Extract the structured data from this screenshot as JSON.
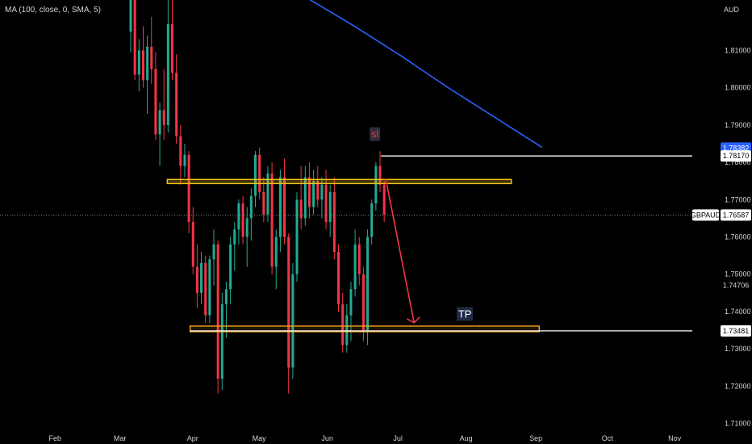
{
  "indicator": {
    "label": "MA (100, close, 0, SMA, 5)"
  },
  "currency": "AUD",
  "chart_data": {
    "type": "candlestick",
    "symbol": "GBPAUD",
    "ylim": [
      1.7045,
      1.8235
    ],
    "y_ticks": [
      "1.81000",
      "1.80000",
      "1.79000",
      "1.78000",
      "1.77000",
      "1.76000",
      "1.75000",
      "1.74000",
      "1.73000",
      "1.72000",
      "1.71000"
    ],
    "x_ticks": [
      "Feb",
      "Mar",
      "Apr",
      "May",
      "Jun",
      "Jul",
      "Aug",
      "Sep",
      "Oct",
      "Nov"
    ],
    "price_labels": {
      "current": "1.76587",
      "top": "1.78382",
      "sl": "1.78170",
      "mid": "1.74706",
      "tp": "1.73481"
    },
    "horizontal_lines": [
      {
        "name": "sl-level",
        "price": 1.7817,
        "color": "#ffffff"
      },
      {
        "name": "tp-level",
        "price": 1.73481,
        "color": "#ffffff"
      },
      {
        "name": "current-price",
        "price": 1.76587,
        "color": "#787b86",
        "style": "dotted"
      }
    ],
    "zones": [
      {
        "name": "resistance-zone",
        "from": 1.7743,
        "to": 1.7754,
        "color": "#f5c518"
      },
      {
        "name": "support-zone",
        "from": 1.7346,
        "to": 1.7361,
        "color": "#f5a623"
      }
    ],
    "annotations": [
      {
        "name": "sl-label",
        "text": "sl",
        "color": "#f23645"
      },
      {
        "name": "tp-label",
        "text": "TP",
        "color": "#ffffff"
      }
    ],
    "colors": {
      "up": "#22ab94",
      "down": "#f23645",
      "ma": "#2962ff",
      "arrow": "#f23645",
      "zone": "#f5c518"
    },
    "ma_series": [
      1.824,
      1.8165,
      1.8085,
      1.8,
      1.792,
      1.784
    ],
    "candles": [
      [
        1.815,
        1.8255,
        1.8095,
        1.824
      ],
      [
        1.824,
        1.8255,
        1.802,
        1.8035
      ],
      [
        1.8035,
        1.813,
        1.799,
        1.81
      ],
      [
        1.81,
        1.8165,
        1.8,
        1.802
      ],
      [
        1.802,
        1.814,
        1.793,
        1.811
      ],
      [
        1.811,
        1.819,
        1.801,
        1.805
      ],
      [
        1.805,
        1.8095,
        1.786,
        1.7875
      ],
      [
        1.7875,
        1.796,
        1.779,
        1.794
      ],
      [
        1.794,
        1.805,
        1.786,
        1.79
      ],
      [
        1.79,
        1.824,
        1.788,
        1.817
      ],
      [
        1.817,
        1.825,
        1.802,
        1.804
      ],
      [
        1.804,
        1.809,
        1.785,
        1.787
      ],
      [
        1.787,
        1.79,
        1.774,
        1.779
      ],
      [
        1.779,
        1.785,
        1.776,
        1.782
      ],
      [
        1.782,
        1.783,
        1.761,
        1.764
      ],
      [
        1.764,
        1.768,
        1.75,
        1.752
      ],
      [
        1.752,
        1.758,
        1.741,
        1.745
      ],
      [
        1.745,
        1.756,
        1.742,
        1.753
      ],
      [
        1.753,
        1.755,
        1.737,
        1.739
      ],
      [
        1.739,
        1.755,
        1.737,
        1.754
      ],
      [
        1.754,
        1.762,
        1.747,
        1.758
      ],
      [
        1.758,
        1.759,
        1.718,
        1.722
      ],
      [
        1.722,
        1.745,
        1.719,
        1.742
      ],
      [
        1.742,
        1.748,
        1.733,
        1.746
      ],
      [
        1.746,
        1.76,
        1.742,
        1.758
      ],
      [
        1.758,
        1.764,
        1.751,
        1.762
      ],
      [
        1.762,
        1.77,
        1.758,
        1.769
      ],
      [
        1.769,
        1.771,
        1.758,
        1.76
      ],
      [
        1.76,
        1.768,
        1.752,
        1.765
      ],
      [
        1.765,
        1.773,
        1.759,
        1.771
      ],
      [
        1.771,
        1.783,
        1.768,
        1.782
      ],
      [
        1.782,
        1.784,
        1.77,
        1.772
      ],
      [
        1.772,
        1.776,
        1.764,
        1.766
      ],
      [
        1.766,
        1.779,
        1.764,
        1.777
      ],
      [
        1.777,
        1.78,
        1.75,
        1.752
      ],
      [
        1.752,
        1.762,
        1.746,
        1.76
      ],
      [
        1.76,
        1.778,
        1.756,
        1.776
      ],
      [
        1.776,
        1.781,
        1.758,
        1.76
      ],
      [
        1.76,
        1.761,
        1.718,
        1.725
      ],
      [
        1.725,
        1.753,
        1.722,
        1.75
      ],
      [
        1.75,
        1.772,
        1.748,
        1.77
      ],
      [
        1.77,
        1.779,
        1.762,
        1.765
      ],
      [
        1.765,
        1.779,
        1.763,
        1.776
      ],
      [
        1.776,
        1.78,
        1.765,
        1.768
      ],
      [
        1.768,
        1.778,
        1.766,
        1.775
      ],
      [
        1.775,
        1.779,
        1.768,
        1.77
      ],
      [
        1.77,
        1.776,
        1.765,
        1.774
      ],
      [
        1.774,
        1.778,
        1.762,
        1.764
      ],
      [
        1.764,
        1.774,
        1.76,
        1.772
      ],
      [
        1.772,
        1.776,
        1.754,
        1.756
      ],
      [
        1.756,
        1.758,
        1.74,
        1.742
      ],
      [
        1.742,
        1.745,
        1.729,
        1.731
      ],
      [
        1.731,
        1.742,
        1.729,
        1.739
      ],
      [
        1.739,
        1.748,
        1.732,
        1.746
      ],
      [
        1.746,
        1.762,
        1.744,
        1.758
      ],
      [
        1.758,
        1.76,
        1.747,
        1.75
      ],
      [
        1.75,
        1.752,
        1.732,
        1.735
      ],
      [
        1.735,
        1.762,
        1.731,
        1.76
      ],
      [
        1.76,
        1.77,
        1.758,
        1.769
      ],
      [
        1.769,
        1.78,
        1.767,
        1.779
      ],
      [
        1.779,
        1.783,
        1.772,
        1.774
      ],
      [
        1.774,
        1.775,
        1.764,
        1.766
      ]
    ]
  }
}
